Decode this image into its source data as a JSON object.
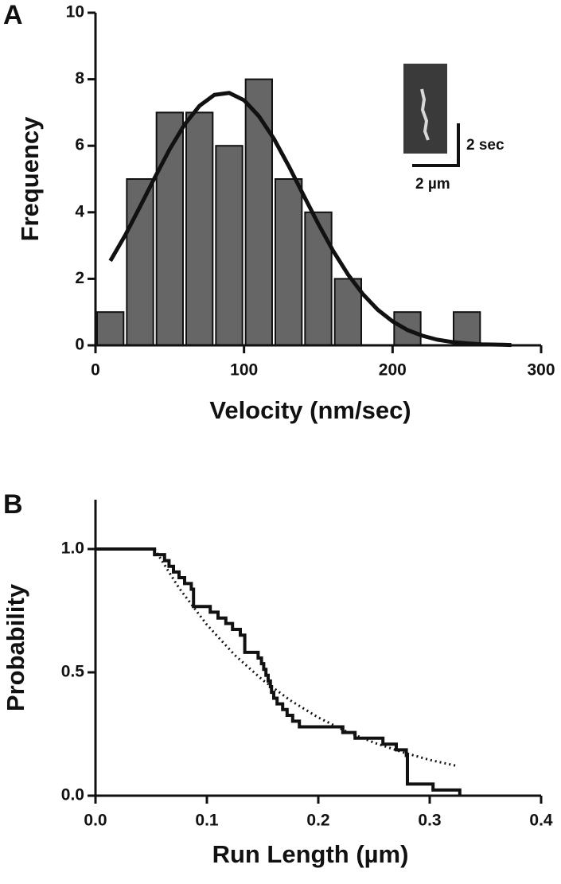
{
  "chart_data": [
    {
      "type": "histogram",
      "panel_label": "A",
      "x_label": "Velocity (nm/sec)",
      "y_label": "Frequency",
      "bins": [
        0,
        20,
        40,
        60,
        80,
        100,
        120,
        140,
        160,
        180,
        200,
        220,
        240,
        260
      ],
      "values": [
        1,
        5,
        7,
        7,
        6,
        8,
        5,
        4,
        2,
        0,
        1,
        0,
        1
      ],
      "color": "#666666",
      "fit": {
        "color": "#111111",
        "x": [
          10,
          20,
          30,
          40,
          50,
          60,
          70,
          80,
          90,
          100,
          110,
          120,
          130,
          140,
          150,
          160,
          170,
          180,
          190,
          200,
          210,
          220,
          230,
          240,
          250,
          260,
          270,
          280
        ],
        "values": [
          2.54,
          3.31,
          4.17,
          5.05,
          5.9,
          6.64,
          7.2,
          7.53,
          7.59,
          7.37,
          6.89,
          6.22,
          5.4,
          4.52,
          3.65,
          2.84,
          2.13,
          1.54,
          1.07,
          0.72,
          0.46,
          0.29,
          0.17,
          0.1,
          0.06,
          0.03,
          0.02,
          0.01
        ]
      },
      "xlim": [
        0,
        300
      ],
      "xticks": [
        0,
        100,
        200,
        300
      ],
      "ylim": [
        0,
        10
      ],
      "yticks": [
        0,
        2,
        4,
        6,
        8,
        10
      ],
      "annotations": [
        "2 sec",
        "2 µm"
      ]
    },
    {
      "type": "line",
      "panel_label": "B",
      "x_label": "Run Length (µm)",
      "y_label": "Probability",
      "series": [
        {
          "color": "#111111",
          "style": "step",
          "x": [
            0,
            0.053,
            0.062,
            0.066,
            0.07,
            0.075,
            0.08,
            0.086,
            0.088,
            0.103,
            0.11,
            0.117,
            0.123,
            0.13,
            0.134,
            0.146,
            0.149,
            0.151,
            0.153,
            0.155,
            0.157,
            0.158,
            0.16,
            0.163,
            0.168,
            0.172,
            0.177,
            0.183,
            0.222,
            0.233,
            0.258,
            0.27,
            0.279,
            0.28,
            0.303,
            0.327
          ],
          "values": [
            1.0,
            0.977,
            0.953,
            0.93,
            0.907,
            0.884,
            0.86,
            0.837,
            0.767,
            0.744,
            0.72,
            0.698,
            0.674,
            0.651,
            0.581,
            0.558,
            0.535,
            0.512,
            0.488,
            0.465,
            0.442,
            0.419,
            0.395,
            0.372,
            0.349,
            0.326,
            0.302,
            0.279,
            0.256,
            0.233,
            0.209,
            0.186,
            0.163,
            0.047,
            0.023,
            0
          ]
        },
        {
          "color": "#111111",
          "style": "dotted",
          "x": [
            0.053,
            0.075,
            0.1,
            0.125,
            0.15,
            0.175,
            0.2,
            0.225,
            0.25,
            0.275,
            0.3,
            0.325
          ],
          "values": [
            1.0,
            0.842,
            0.693,
            0.57,
            0.469,
            0.386,
            0.317,
            0.261,
            0.215,
            0.177,
            0.145,
            0.12
          ]
        }
      ],
      "xlim": [
        0,
        0.4
      ],
      "xticks": [
        {
          "value": 0,
          "label": "0.0"
        },
        0.1,
        0.2,
        0.3,
        0.4
      ],
      "ylim": [
        0,
        1.2
      ],
      "yticks": [
        {
          "value": 0,
          "label": "0.0"
        },
        0.5,
        {
          "value": 1,
          "label": "1.0"
        }
      ]
    }
  ]
}
